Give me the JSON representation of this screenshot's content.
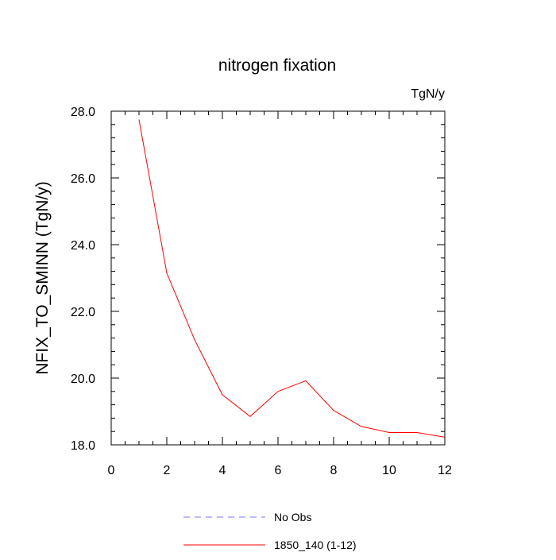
{
  "chart_data": {
    "type": "line",
    "title": "nitrogen fixation",
    "units_label": "TgN/y",
    "xlabel": "",
    "ylabel": "NFIX_TO_SMINN  (TgN/y)",
    "xlim": [
      0,
      12
    ],
    "ylim": [
      18.0,
      28.0
    ],
    "x_ticks": [
      "0",
      "2",
      "4",
      "6",
      "8",
      "10",
      "12"
    ],
    "y_ticks": [
      "18.0",
      "20.0",
      "22.0",
      "24.0",
      "26.0",
      "28.0"
    ],
    "grid": false,
    "legend_position": "bottom",
    "series": [
      {
        "name": "No Obs",
        "color": "#7777ff",
        "dash": "dashed",
        "x": [],
        "y": []
      },
      {
        "name": "1850_140 (1-12)",
        "color": "#ff0000",
        "dash": "solid",
        "x": [
          1,
          2,
          3,
          4,
          5,
          6,
          7,
          8,
          9,
          10,
          11,
          12
        ],
        "y": [
          27.75,
          23.15,
          21.15,
          19.5,
          18.85,
          19.6,
          19.92,
          19.03,
          18.55,
          18.37,
          18.37,
          18.23
        ]
      }
    ]
  }
}
